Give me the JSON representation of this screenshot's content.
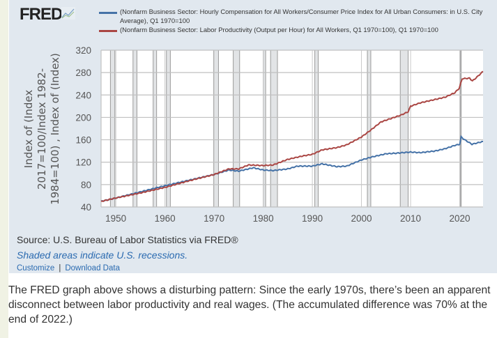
{
  "logo": "FRED",
  "legend": [
    {
      "label": "(Nonfarm Business Sector: Hourly Compensation for All Workers/Consumer Price Index for All Urban Consumers: in U.S. City Average), Q1 1970=100",
      "color": "#4572a7"
    },
    {
      "label": "(Nonfarm Business Sector: Labor Productivity (Output per Hour) for All Workers, Q1 1970=100), Q1 1970=100",
      "color": "#aa4643"
    }
  ],
  "chart_data": {
    "type": "line",
    "ylabel": "Index of (Index 2017=100/Index 1982-1984=100) , Index of (Index)",
    "ylim": [
      40,
      320
    ],
    "xlim": [
      1947,
      2024.75
    ],
    "yticks": [
      40,
      80,
      120,
      160,
      200,
      240,
      280,
      320
    ],
    "xticks": [
      1950,
      1960,
      1970,
      1980,
      1990,
      2000,
      2010,
      2020
    ],
    "grid": true,
    "legend_position": "top",
    "recessions": [
      [
        1948.9,
        1949.8
      ],
      [
        1953.5,
        1954.3
      ],
      [
        1957.6,
        1958.3
      ],
      [
        1960.3,
        1961.1
      ],
      [
        1969.9,
        1970.9
      ],
      [
        1973.9,
        1975.2
      ],
      [
        1980.0,
        1980.5
      ],
      [
        1981.5,
        1982.9
      ],
      [
        1990.5,
        1991.2
      ],
      [
        2001.2,
        2001.9
      ],
      [
        2007.9,
        2009.5
      ],
      [
        2020.1,
        2020.3
      ]
    ],
    "series": [
      {
        "name": "(Nonfarm Business Sector: Hourly Compensation for All Workers/Consumer Price Index for All Urban Consumers: in U.S. City Average), Q1 1970=100",
        "color": "#4572a7",
        "x": [
          1947,
          1950,
          1955,
          1960,
          1965,
          1970,
          1973,
          1975,
          1978,
          1980,
          1982,
          1985,
          1987,
          1990,
          1992,
          1995,
          1997,
          2000,
          2002,
          2005,
          2007,
          2010,
          2012,
          2015,
          2017,
          2019,
          2020,
          2020.3,
          2021,
          2022.5,
          2024.75
        ],
        "y": [
          50,
          56,
          67,
          78,
          88,
          98,
          106,
          104,
          110,
          106,
          105,
          108,
          113,
          113,
          117,
          112,
          113,
          124,
          129,
          135,
          136,
          138,
          137,
          140,
          144,
          150,
          152,
          165,
          160,
          152,
          157
        ]
      },
      {
        "name": "(Nonfarm Business Sector: Labor Productivity (Output per Hour) for All Workers, Q1 1970=100), Q1 1970=100",
        "color": "#aa4643",
        "x": [
          1947,
          1950,
          1955,
          1960,
          1965,
          1970,
          1973,
          1975,
          1977,
          1980,
          1982,
          1985,
          1988,
          1990,
          1992,
          1995,
          1997,
          2000,
          2002,
          2004,
          2006,
          2008,
          2009.5,
          2010,
          2012,
          2015,
          2017,
          2019,
          2019.9,
          2020.5,
          2022,
          2022.6,
          2023.5,
          2024.75
        ],
        "y": [
          50,
          56,
          65,
          75,
          87,
          98,
          108,
          108,
          115,
          114,
          115,
          125,
          131,
          134,
          142,
          146,
          151,
          165,
          178,
          192,
          198,
          204,
          210,
          220,
          226,
          232,
          236,
          244,
          252,
          269,
          270,
          265,
          272,
          282
        ]
      }
    ]
  },
  "source": "Source: U.S. Bureau of Labor Statistics via FRED®",
  "shaded_note": "Shaded areas indicate U.S. recessions.",
  "links": {
    "customize": "Customize",
    "separator": "|",
    "download": "Download Data"
  },
  "body_text": "The FRED graph above shows a disturbing pattern: Since the early 1970s, there’s been an apparent disconnect between labor productivity and real wages. (The accumulated difference was 70% at the end of 2022.)"
}
